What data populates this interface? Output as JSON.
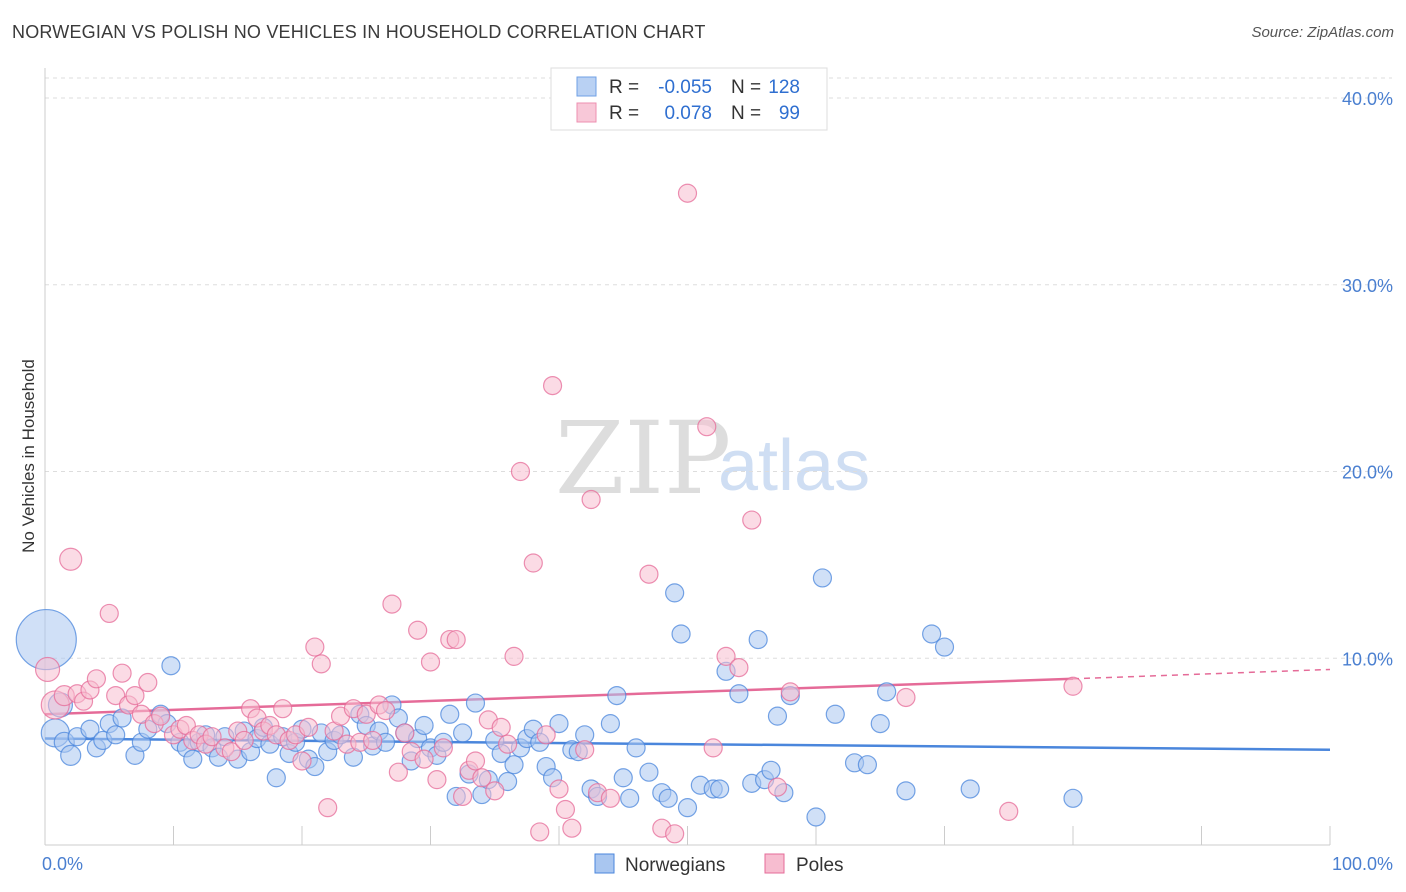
{
  "title": "NORWEGIAN VS POLISH NO VEHICLES IN HOUSEHOLD CORRELATION CHART",
  "source": "Source: ZipAtlas.com",
  "watermark": {
    "zip": "ZIP",
    "atlas": "atlas"
  },
  "legend_top": [
    {
      "r_label": "R =",
      "r_value": "-0.055",
      "n_label": "N =",
      "n_value": "128",
      "color": "#6fa0e6",
      "fill": "#b9d1f3"
    },
    {
      "r_label": "R =",
      "r_value": "0.078",
      "n_label": "N =",
      "n_value": "99",
      "color": "#ee8fb0",
      "fill": "#f8c8d8"
    }
  ],
  "chart_data": {
    "type": "scatter",
    "ylabel": "No Vehicles in Household",
    "xlim": [
      0,
      100
    ],
    "ylim": [
      0,
      40
    ],
    "x_tick_labels": [
      "0.0%",
      "100.0%"
    ],
    "y_ticks": [
      {
        "value": 10,
        "label": "10.0%"
      },
      {
        "value": 20,
        "label": "20.0%"
      },
      {
        "value": 30,
        "label": "30.0%"
      },
      {
        "value": 40,
        "label": "40.0%"
      }
    ],
    "grid": true,
    "legend_position": "bottom",
    "series": [
      {
        "name": "Norwegians",
        "color": "#4a86dc",
        "fill": "#a9c6f0",
        "trend": {
          "x": [
            0,
            100
          ],
          "y": [
            5.7,
            5.1
          ]
        },
        "points": [
          [
            0.1,
            11.0,
            30
          ],
          [
            0.8,
            6.0,
            14
          ],
          [
            1.2,
            7.5,
            12
          ],
          [
            1.5,
            5.5,
            10
          ],
          [
            2.0,
            4.8,
            10
          ],
          [
            2.5,
            5.8,
            9
          ],
          [
            3.5,
            6.2,
            9
          ],
          [
            4,
            5.2,
            9
          ],
          [
            4.5,
            5.6,
            9
          ],
          [
            5,
            6.5,
            9
          ],
          [
            5.5,
            5.9,
            9
          ],
          [
            6,
            6.8,
            9
          ],
          [
            7,
            4.8,
            9
          ],
          [
            7.5,
            5.5,
            9
          ],
          [
            8,
            6.2,
            9
          ],
          [
            9,
            7.0,
            9
          ],
          [
            9.5,
            6.5,
            9
          ],
          [
            9.8,
            9.6,
            9
          ],
          [
            10.5,
            5.5,
            9
          ],
          [
            11,
            5.2,
            9
          ],
          [
            11.5,
            4.6,
            9
          ],
          [
            12,
            5.5,
            9
          ],
          [
            12.5,
            5.9,
            9
          ],
          [
            13,
            5.2,
            9
          ],
          [
            13.5,
            4.7,
            9
          ],
          [
            14,
            5.8,
            9
          ],
          [
            15,
            4.6,
            9
          ],
          [
            15.5,
            6.1,
            9
          ],
          [
            16,
            5.0,
            9
          ],
          [
            16.5,
            5.7,
            9
          ],
          [
            17,
            6.3,
            9
          ],
          [
            17.5,
            5.4,
            9
          ],
          [
            18,
            3.6,
            9
          ],
          [
            18.5,
            5.8,
            9
          ],
          [
            19,
            4.9,
            9
          ],
          [
            19.5,
            5.5,
            9
          ],
          [
            20,
            6.2,
            9
          ],
          [
            20.5,
            4.6,
            9
          ],
          [
            21,
            4.2,
            9
          ],
          [
            21.5,
            6.0,
            9
          ],
          [
            22,
            5.0,
            9
          ],
          [
            22.5,
            5.6,
            9
          ],
          [
            23,
            5.9,
            9
          ],
          [
            24,
            4.7,
            9
          ],
          [
            24.5,
            7.0,
            9
          ],
          [
            25,
            6.4,
            9
          ],
          [
            25.5,
            5.3,
            9
          ],
          [
            26,
            6.1,
            9
          ],
          [
            26.5,
            5.5,
            9
          ],
          [
            27,
            7.5,
            9
          ],
          [
            27.5,
            6.8,
            9
          ],
          [
            28,
            6.0,
            9
          ],
          [
            28.5,
            4.5,
            9
          ],
          [
            29,
            5.7,
            9
          ],
          [
            29.5,
            6.4,
            9
          ],
          [
            30,
            5.2,
            9
          ],
          [
            30.5,
            4.8,
            9
          ],
          [
            31,
            5.5,
            9
          ],
          [
            31.5,
            7.0,
            9
          ],
          [
            32,
            2.6,
            9
          ],
          [
            32.5,
            6.0,
            9
          ],
          [
            33,
            3.8,
            9
          ],
          [
            33.5,
            7.6,
            9
          ],
          [
            34,
            2.7,
            9
          ],
          [
            34.5,
            3.5,
            9
          ],
          [
            35,
            5.6,
            9
          ],
          [
            35.5,
            4.9,
            9
          ],
          [
            36,
            3.4,
            9
          ],
          [
            36.5,
            4.3,
            9
          ],
          [
            37,
            5.2,
            9
          ],
          [
            37.5,
            5.7,
            9
          ],
          [
            38,
            6.2,
            9
          ],
          [
            38.5,
            5.5,
            9
          ],
          [
            39,
            4.2,
            9
          ],
          [
            39.5,
            3.6,
            9
          ],
          [
            40,
            6.5,
            9
          ],
          [
            41,
            5.1,
            9
          ],
          [
            41.5,
            5.0,
            9
          ],
          [
            42,
            5.9,
            9
          ],
          [
            42.5,
            3.0,
            9
          ],
          [
            43,
            2.6,
            9
          ],
          [
            44,
            6.5,
            9
          ],
          [
            44.5,
            8.0,
            9
          ],
          [
            45,
            3.6,
            9
          ],
          [
            45.5,
            2.5,
            9
          ],
          [
            46,
            5.2,
            9
          ],
          [
            47,
            3.9,
            9
          ],
          [
            48,
            2.8,
            9
          ],
          [
            48.5,
            2.5,
            9
          ],
          [
            49,
            13.5,
            9
          ],
          [
            49.5,
            11.3,
            9
          ],
          [
            50,
            2.0,
            9
          ],
          [
            51,
            3.2,
            9
          ],
          [
            52,
            3.0,
            9
          ],
          [
            52.5,
            3.0,
            9
          ],
          [
            53,
            9.3,
            9
          ],
          [
            54,
            8.1,
            9
          ],
          [
            55,
            3.3,
            9
          ],
          [
            55.5,
            11.0,
            9
          ],
          [
            56,
            3.5,
            9
          ],
          [
            56.5,
            4.0,
            9
          ],
          [
            57,
            6.9,
            9
          ],
          [
            57.5,
            2.8,
            9
          ],
          [
            58,
            8.0,
            9
          ],
          [
            60,
            1.5,
            9
          ],
          [
            60.5,
            14.3,
            9
          ],
          [
            61.5,
            7.0,
            9
          ],
          [
            63,
            4.4,
            9
          ],
          [
            64,
            4.3,
            9
          ],
          [
            65,
            6.5,
            9
          ],
          [
            65.5,
            8.2,
            9
          ],
          [
            67,
            2.9,
            9
          ],
          [
            69,
            11.3,
            9
          ],
          [
            70,
            10.6,
            9
          ],
          [
            72,
            3.0,
            9
          ],
          [
            80,
            2.5,
            9
          ]
        ]
      },
      {
        "name": "Poles",
        "color": "#e56b98",
        "fill": "#f7bdd0",
        "trend": {
          "x": [
            0,
            80
          ],
          "y": [
            7.0,
            8.9
          ],
          "dashed_to": 100,
          "dashed_y": 9.4
        },
        "points": [
          [
            0.2,
            9.4,
            12
          ],
          [
            0.8,
            7.5,
            14
          ],
          [
            1.5,
            8.0,
            10
          ],
          [
            2.0,
            15.3,
            11
          ],
          [
            2.5,
            8.1,
            9
          ],
          [
            3,
            7.7,
            9
          ],
          [
            3.5,
            8.3,
            9
          ],
          [
            4,
            8.9,
            9
          ],
          [
            5,
            12.4,
            9
          ],
          [
            5.5,
            8.0,
            9
          ],
          [
            6,
            9.2,
            9
          ],
          [
            6.5,
            7.5,
            9
          ],
          [
            7,
            8.0,
            9
          ],
          [
            7.5,
            7.0,
            9
          ],
          [
            8,
            8.7,
            9
          ],
          [
            8.5,
            6.5,
            9
          ],
          [
            9,
            6.9,
            9
          ],
          [
            10,
            5.9,
            9
          ],
          [
            10.5,
            6.2,
            9
          ],
          [
            11,
            6.4,
            9
          ],
          [
            11.5,
            5.6,
            9
          ],
          [
            12,
            5.9,
            9
          ],
          [
            12.5,
            5.4,
            9
          ],
          [
            13,
            5.8,
            9
          ],
          [
            14,
            5.2,
            9
          ],
          [
            14.5,
            5.0,
            9
          ],
          [
            15,
            6.1,
            9
          ],
          [
            15.5,
            5.6,
            9
          ],
          [
            16,
            7.3,
            9
          ],
          [
            16.5,
            6.8,
            9
          ],
          [
            17,
            6.1,
            9
          ],
          [
            17.5,
            6.4,
            9
          ],
          [
            18,
            5.9,
            9
          ],
          [
            18.5,
            7.3,
            9
          ],
          [
            19,
            5.6,
            9
          ],
          [
            19.5,
            5.9,
            9
          ],
          [
            20,
            4.5,
            9
          ],
          [
            20.5,
            6.3,
            9
          ],
          [
            21,
            10.6,
            9
          ],
          [
            21.5,
            9.7,
            9
          ],
          [
            22,
            2.0,
            9
          ],
          [
            22.5,
            6.1,
            9
          ],
          [
            23,
            6.9,
            9
          ],
          [
            23.5,
            5.4,
            9
          ],
          [
            24,
            7.3,
            9
          ],
          [
            24.5,
            5.5,
            9
          ],
          [
            25,
            7.0,
            9
          ],
          [
            25.5,
            5.6,
            9
          ],
          [
            26,
            7.5,
            9
          ],
          [
            26.5,
            7.2,
            9
          ],
          [
            27,
            12.9,
            9
          ],
          [
            27.5,
            3.9,
            9
          ],
          [
            28,
            6.0,
            9
          ],
          [
            28.5,
            5.0,
            9
          ],
          [
            29,
            11.5,
            9
          ],
          [
            29.5,
            4.6,
            9
          ],
          [
            30,
            9.8,
            9
          ],
          [
            30.5,
            3.5,
            9
          ],
          [
            31,
            5.2,
            9
          ],
          [
            31.5,
            11.0,
            9
          ],
          [
            32,
            11.0,
            9
          ],
          [
            32.5,
            2.6,
            9
          ],
          [
            33,
            4.0,
            9
          ],
          [
            33.5,
            4.5,
            9
          ],
          [
            34,
            3.6,
            9
          ],
          [
            34.5,
            6.7,
            9
          ],
          [
            35,
            2.9,
            9
          ],
          [
            35.5,
            6.3,
            9
          ],
          [
            36,
            5.4,
            9
          ],
          [
            36.5,
            10.1,
            9
          ],
          [
            37,
            20.0,
            9
          ],
          [
            38,
            15.1,
            9
          ],
          [
            38.5,
            0.7,
            9
          ],
          [
            39,
            5.9,
            9
          ],
          [
            39.5,
            24.6,
            9
          ],
          [
            40,
            3.0,
            9
          ],
          [
            40.5,
            1.9,
            9
          ],
          [
            41,
            0.9,
            9
          ],
          [
            42,
            5.1,
            9
          ],
          [
            42.5,
            18.5,
            9
          ],
          [
            43,
            2.8,
            9
          ],
          [
            44,
            2.5,
            9
          ],
          [
            47,
            14.5,
            9
          ],
          [
            48,
            0.9,
            9
          ],
          [
            49,
            0.6,
            9
          ],
          [
            50,
            34.9,
            9
          ],
          [
            51.5,
            22.4,
            9
          ],
          [
            52,
            5.2,
            9
          ],
          [
            53,
            10.1,
            9
          ],
          [
            54,
            9.5,
            9
          ],
          [
            55,
            17.4,
            9
          ],
          [
            57,
            3.1,
            9
          ],
          [
            58,
            8.2,
            9
          ],
          [
            67,
            7.9,
            9
          ],
          [
            75,
            1.8,
            9
          ],
          [
            80,
            8.5,
            9
          ]
        ]
      }
    ]
  }
}
